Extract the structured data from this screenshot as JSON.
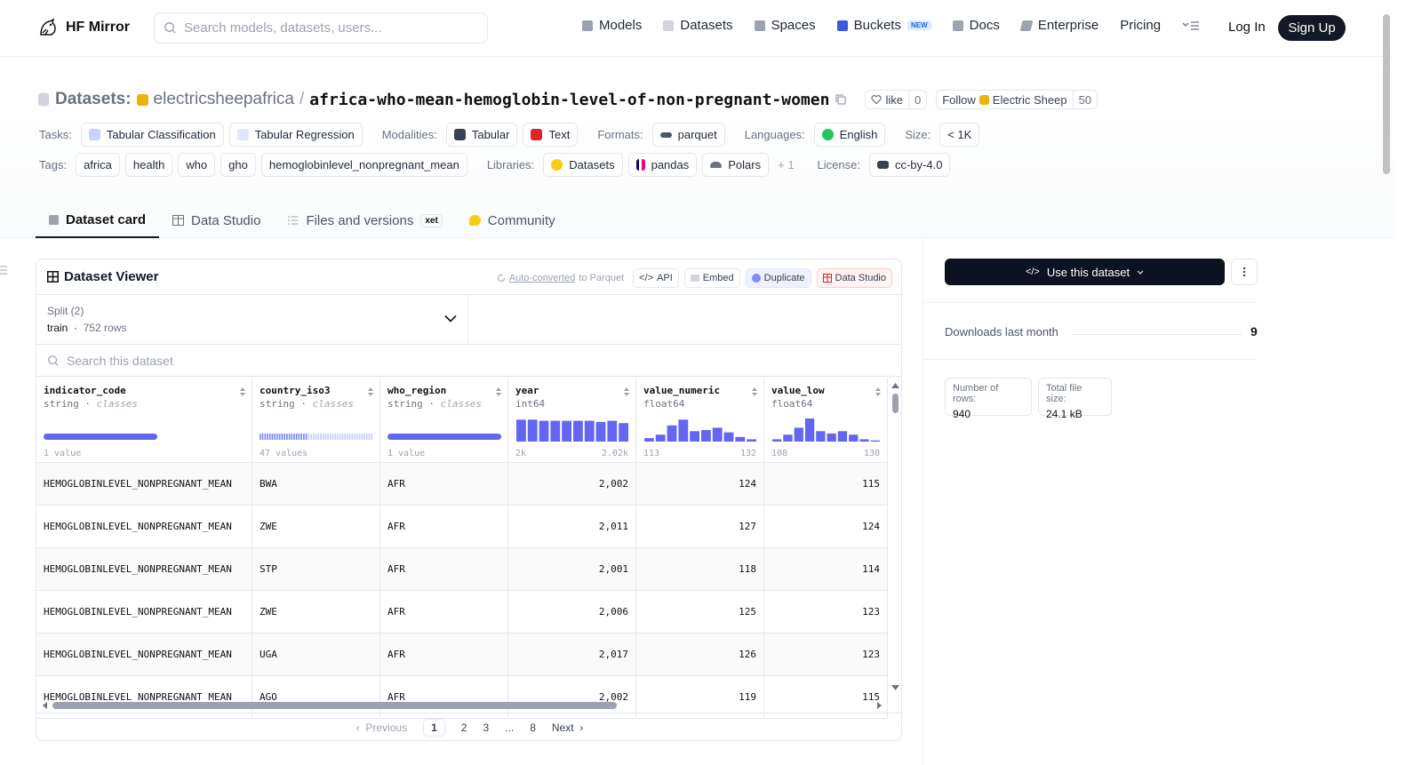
{
  "header": {
    "logo_text": "HF Mirror",
    "search_placeholder": "Search models, datasets, users...",
    "nav": [
      {
        "label": "Models",
        "icon": "cube-icon",
        "color": "#9ca3af"
      },
      {
        "label": "Datasets",
        "icon": "database-icon",
        "color": "#9ca3af"
      },
      {
        "label": "Spaces",
        "icon": "grid-icon",
        "color": "#9ca3af"
      },
      {
        "label": "Buckets",
        "icon": "bucket-icon",
        "color": "#3b5bdb",
        "badge": "NEW"
      },
      {
        "label": "Docs",
        "icon": "book-icon",
        "color": "#9ca3af"
      },
      {
        "label": "Enterprise",
        "icon": "enterprise-icon",
        "color": "#9ca3af"
      },
      {
        "label": "Pricing"
      }
    ],
    "login": "Log In",
    "signup": "Sign Up"
  },
  "dataset": {
    "section_label": "Datasets:",
    "owner": "electricsheepafrica",
    "name": "africa-who-mean-hemoglobin-level-of-non-pregnant-women",
    "like_label": "like",
    "like_count": "0",
    "follow_label": "Follow",
    "follow_org": "Electric Sheep",
    "follow_count": "50"
  },
  "meta": {
    "tasks_label": "Tasks:",
    "tasks": [
      "Tabular Classification",
      "Tabular Regression"
    ],
    "modalities_label": "Modalities:",
    "modalities": [
      "Tabular",
      "Text"
    ],
    "formats_label": "Formats:",
    "formats": [
      "parquet"
    ],
    "languages_label": "Languages:",
    "languages": [
      "English"
    ],
    "size_label": "Size:",
    "size": "< 1K",
    "tags_label": "Tags:",
    "tags": [
      "africa",
      "health",
      "who",
      "gho",
      "hemoglobinlevel_nonpregnant_mean"
    ],
    "libraries_label": "Libraries:",
    "libraries": [
      "Datasets",
      "pandas",
      "Polars"
    ],
    "libraries_more": "+ 1",
    "license_label": "License:",
    "license": "cc-by-4.0"
  },
  "tabs": [
    {
      "label": "Dataset card",
      "active": true
    },
    {
      "label": "Data Studio"
    },
    {
      "label": "Files and versions",
      "badge": "xet"
    },
    {
      "label": "Community"
    }
  ],
  "viewer": {
    "title": "Dataset Viewer",
    "auto_link": "Auto-converted",
    "auto_rest": "to Parquet",
    "api": "API",
    "embed": "Embed",
    "duplicate": "Duplicate",
    "studio": "Data Studio",
    "split_label": "Split (2)",
    "split_name": "train",
    "split_rows": "752 rows",
    "search_placeholder": "Search this dataset",
    "columns": [
      {
        "name": "indicator_code",
        "type": "string",
        "kind": "classes",
        "footer_left": "1 value",
        "footer_right": "",
        "viz": "bar-full",
        "width": 243
      },
      {
        "name": "country_iso3",
        "type": "string",
        "kind": "classes",
        "footer_left": "47 values",
        "footer_right": "",
        "viz": "bar-striped",
        "width": 144
      },
      {
        "name": "who_region",
        "type": "string",
        "kind": "classes",
        "footer_left": "1 value",
        "footer_right": "",
        "viz": "bar-full",
        "width": 144
      },
      {
        "name": "year",
        "type": "int64",
        "kind": "",
        "footer_left": "2k",
        "footer_right": "2.02k",
        "viz": "hist",
        "hist": [
          0.95,
          0.95,
          0.9,
          0.9,
          0.9,
          0.9,
          0.9,
          0.85,
          0.9,
          0.8
        ],
        "width": 144
      },
      {
        "name": "value_numeric",
        "type": "float64",
        "kind": "",
        "footer_left": "113",
        "footer_right": "132",
        "viz": "hist",
        "hist": [
          0.15,
          0.3,
          0.7,
          0.95,
          0.45,
          0.5,
          0.6,
          0.4,
          0.2,
          0.1
        ],
        "width": 144
      },
      {
        "name": "value_low",
        "type": "float64",
        "kind": "",
        "footer_left": "108",
        "footer_right": "130",
        "viz": "hist",
        "hist": [
          0.1,
          0.3,
          0.6,
          1.0,
          0.45,
          0.35,
          0.45,
          0.3,
          0.1,
          0.05
        ],
        "width": 139
      }
    ],
    "rows": [
      [
        "HEMOGLOBINLEVEL_NONPREGNANT_MEAN",
        "BWA",
        "AFR",
        "2,002",
        "124",
        "115"
      ],
      [
        "HEMOGLOBINLEVEL_NONPREGNANT_MEAN",
        "ZWE",
        "AFR",
        "2,011",
        "127",
        "124"
      ],
      [
        "HEMOGLOBINLEVEL_NONPREGNANT_MEAN",
        "STP",
        "AFR",
        "2,001",
        "118",
        "114"
      ],
      [
        "HEMOGLOBINLEVEL_NONPREGNANT_MEAN",
        "ZWE",
        "AFR",
        "2,006",
        "125",
        "123"
      ],
      [
        "HEMOGLOBINLEVEL_NONPREGNANT_MEAN",
        "UGA",
        "AFR",
        "2,017",
        "126",
        "123"
      ],
      [
        "HEMOGLOBINLEVEL_NONPREGNANT_MEAN",
        "AGO",
        "AFR",
        "2,002",
        "119",
        "115"
      ]
    ],
    "pager": {
      "previous": "Previous",
      "pages": [
        "1",
        "2",
        "3",
        "...",
        "8"
      ],
      "current": "1",
      "next": "Next"
    }
  },
  "sidebar": {
    "use_button": "Use this dataset",
    "downloads_label": "Downloads last month",
    "downloads_value": "9",
    "rows_label": "Number of rows:",
    "rows_value": "940",
    "size_label": "Total file size:",
    "size_value": "24.1 kB"
  }
}
